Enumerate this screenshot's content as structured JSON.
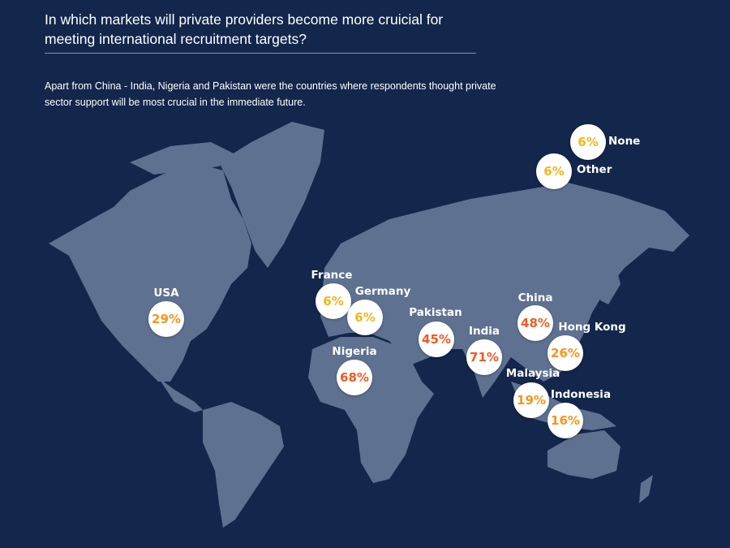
{
  "title": "In which markets will private providers become more cruicial for meeting international recruitment targets?",
  "subtitle": "Apart from China - India, Nigeria and Pakistan were the countries where respondents thought private sector support will be most crucial in the immediate future.",
  "colors": {
    "background": "#13264b",
    "land": "#5f7191",
    "high": "#f15a24",
    "mid": "#f7941d",
    "low": "#f6b51b"
  },
  "markets": [
    {
      "name": "None",
      "value": "6%",
      "color": "#f6b51b"
    },
    {
      "name": "Other",
      "value": "6%",
      "color": "#f6b51b"
    },
    {
      "name": "USA",
      "value": "29%",
      "color": "#f7941d"
    },
    {
      "name": "France",
      "value": "6%",
      "color": "#f6b51b"
    },
    {
      "name": "Germany",
      "value": "6%",
      "color": "#f6b51b"
    },
    {
      "name": "Pakistan",
      "value": "45%",
      "color": "#f15a24"
    },
    {
      "name": "India",
      "value": "71%",
      "color": "#f15a24"
    },
    {
      "name": "China",
      "value": "48%",
      "color": "#f15a24"
    },
    {
      "name": "Hong Kong",
      "value": "26%",
      "color": "#f7941d"
    },
    {
      "name": "Nigeria",
      "value": "68%",
      "color": "#f15a24"
    },
    {
      "name": "Malaysia",
      "value": "19%",
      "color": "#f7941d"
    },
    {
      "name": "Indonesia",
      "value": "16%",
      "color": "#f7941d"
    }
  ]
}
